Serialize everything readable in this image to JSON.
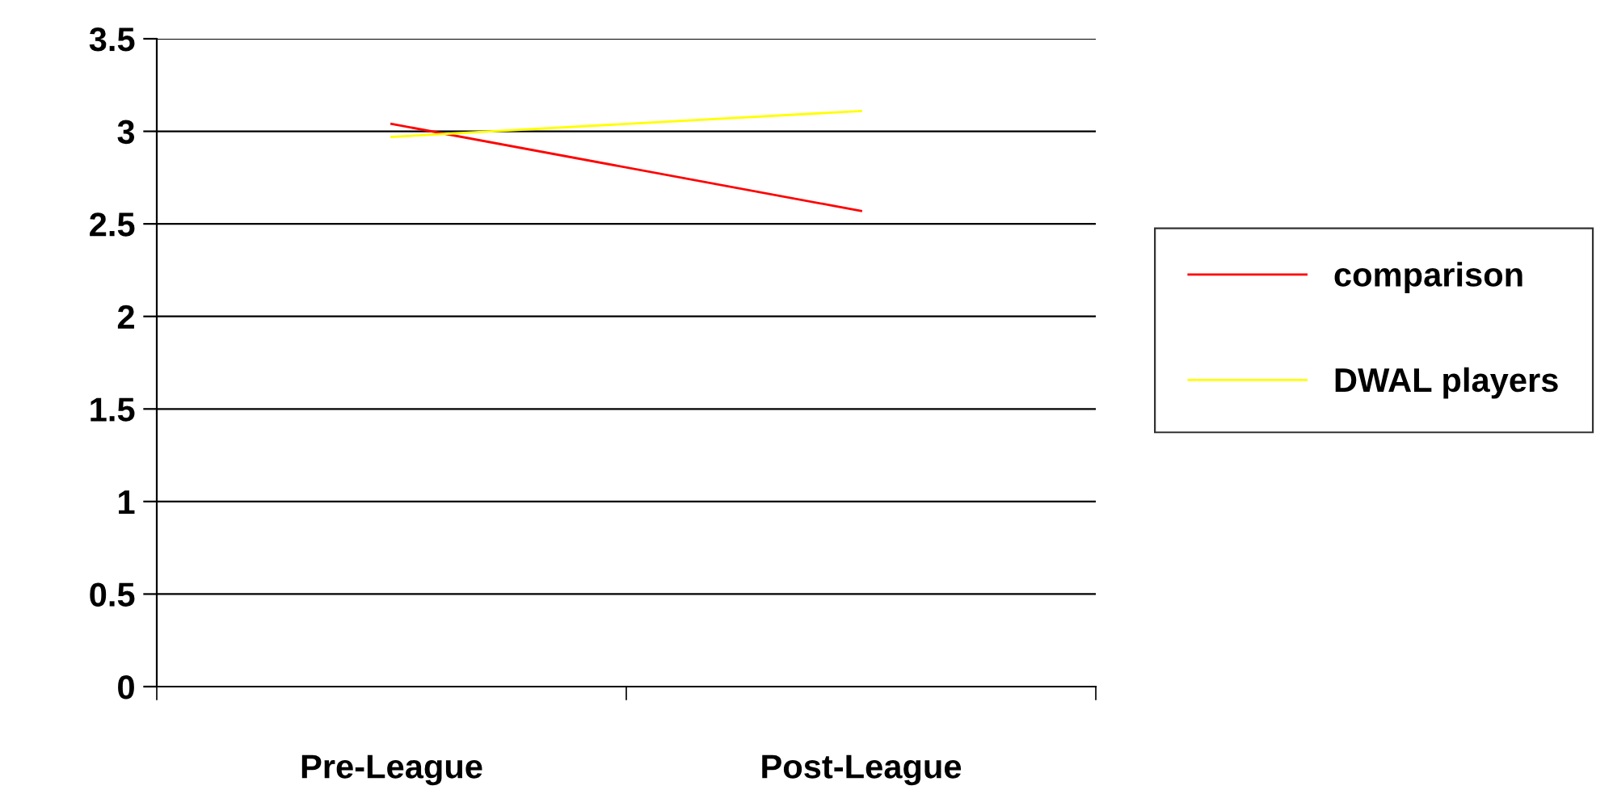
{
  "chart_data": {
    "type": "line",
    "categories": [
      "Pre-League",
      "Post-League"
    ],
    "series": [
      {
        "name": "comparison",
        "color": "#ff0000",
        "values": [
          3.04,
          2.57
        ]
      },
      {
        "name": "DWAL players",
        "color": "#ffff00",
        "values": [
          2.97,
          3.11
        ]
      }
    ],
    "ylim": [
      0,
      3.5
    ],
    "yticks": [
      0,
      0.5,
      1,
      1.5,
      2,
      2.5,
      3,
      3.5
    ],
    "grid": "y",
    "legend": "right",
    "marker": "none",
    "line_style": "solid"
  }
}
